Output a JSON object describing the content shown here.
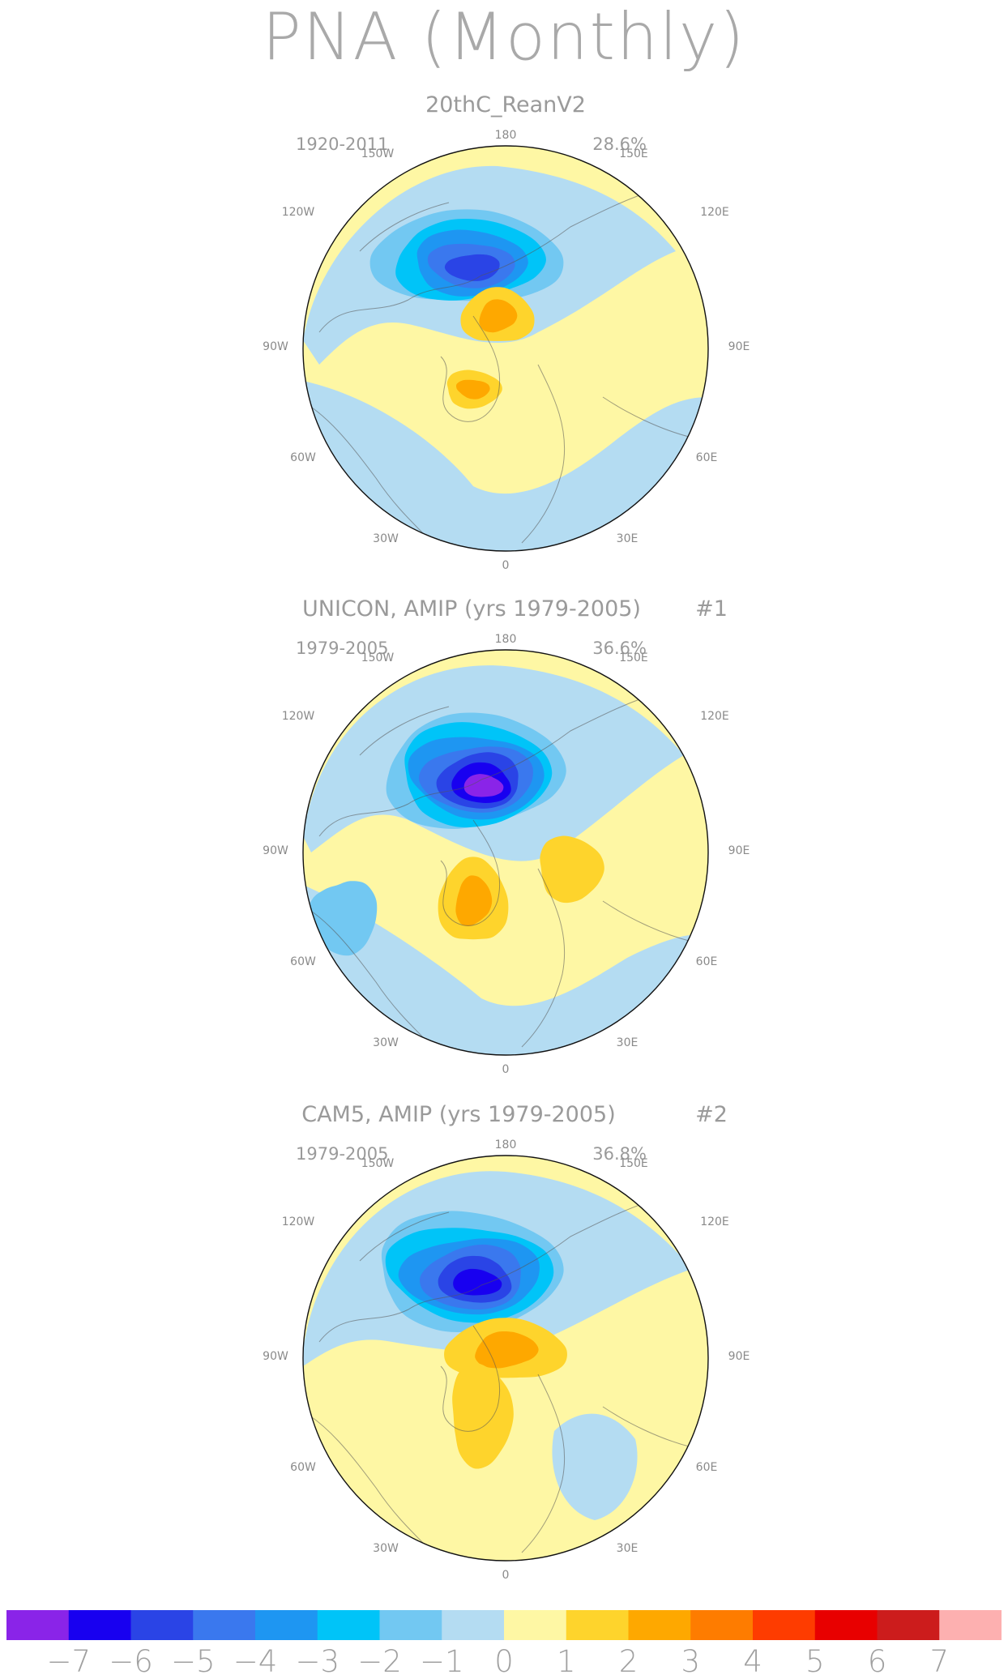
{
  "title": "PNA (Monthly)",
  "panels": [
    {
      "id": "p1",
      "title": "20thC_ReanV2",
      "number": "",
      "years": "1920-2011",
      "percent": "28.6%",
      "low": {
        "label": "-5",
        "level": -5
      },
      "highs": [
        "2",
        "1"
      ]
    },
    {
      "id": "p2",
      "title": "UNICON, AMIP (yrs 1979-2005)",
      "number": "#1",
      "years": "1979-2005",
      "percent": "36.6%",
      "low": {
        "label": "-7",
        "level": -7
      },
      "highs": [
        "2",
        "3"
      ]
    },
    {
      "id": "p3",
      "title": "CAM5, AMIP (yrs 1979-2005)",
      "number": "#2",
      "years": "1979-2005",
      "percent": "36.8%",
      "low": {
        "label": "-6",
        "level": -6
      },
      "highs": [
        "3",
        "2"
      ]
    }
  ],
  "lon_labels": [
    "180",
    "150E",
    "120E",
    "90E",
    "60E",
    "30E",
    "0",
    "30W",
    "60W",
    "90W",
    "120W",
    "150W"
  ],
  "colors": {
    "-7.5": "#8a24e8",
    "-6.5": "#1800f0",
    "-5.5": "#2a44e6",
    "-4.5": "#3a78ee",
    "-3.5": "#1e96f2",
    "-2.5": "#00c4f8",
    "-1.5": "#72c8f2",
    "-0.5": "#b4dcf2",
    "0.5": "#fef7a4",
    "1.5": "#fed42c",
    "2.5": "#fea800",
    "3.5": "#fe7c00",
    "4.5": "#fe3c00",
    "5.5": "#e80000",
    "6.5": "#cc1c1c",
    "7.5": "#fdb0b0"
  },
  "chart_data": {
    "type": "heatmap",
    "title": "PNA (Monthly)",
    "projection": "north polar stereographic",
    "variable": "PNA pattern regression (monthly)",
    "colorbar": {
      "ticks": [
        "-7",
        "-6",
        "-5",
        "-4",
        "-3",
        "-2",
        "-1",
        "0",
        "1",
        "2",
        "3",
        "4",
        "5",
        "6",
        "7"
      ],
      "bins": [
        {
          "from": -8,
          "to": -7,
          "color": "#8a24e8"
        },
        {
          "from": -7,
          "to": -6,
          "color": "#1800f0"
        },
        {
          "from": -6,
          "to": -5,
          "color": "#2a44e6"
        },
        {
          "from": -5,
          "to": -4,
          "color": "#3a78ee"
        },
        {
          "from": -4,
          "to": -3,
          "color": "#1e96f2"
        },
        {
          "from": -3,
          "to": -2,
          "color": "#00c4f8"
        },
        {
          "from": -2,
          "to": -1,
          "color": "#72c8f2"
        },
        {
          "from": -1,
          "to": 0,
          "color": "#b4dcf2"
        },
        {
          "from": 0,
          "to": 1,
          "color": "#fef7a4"
        },
        {
          "from": 1,
          "to": 2,
          "color": "#fed42c"
        },
        {
          "from": 2,
          "to": 3,
          "color": "#fea800"
        },
        {
          "from": 3,
          "to": 4,
          "color": "#fe7c00"
        },
        {
          "from": 4,
          "to": 5,
          "color": "#fe3c00"
        },
        {
          "from": 5,
          "to": 6,
          "color": "#e80000"
        },
        {
          "from": 6,
          "to": 7,
          "color": "#cc1c1c"
        },
        {
          "from": 7,
          "to": 8,
          "color": "#fdb0b0"
        }
      ]
    },
    "panels": [
      {
        "name": "20thC_ReanV2",
        "period": "1920-2011",
        "variance_explained": 28.6,
        "min_value": -5,
        "max_value": 2
      },
      {
        "name": "UNICON, AMIP (yrs 1979-2005)",
        "period": "1979-2005",
        "variance_explained": 36.6,
        "min_value": -7,
        "max_value": 3
      },
      {
        "name": "CAM5, AMIP (yrs 1979-2005)",
        "period": "1979-2005",
        "variance_explained": 36.8,
        "min_value": -6,
        "max_value": 3
      }
    ]
  }
}
